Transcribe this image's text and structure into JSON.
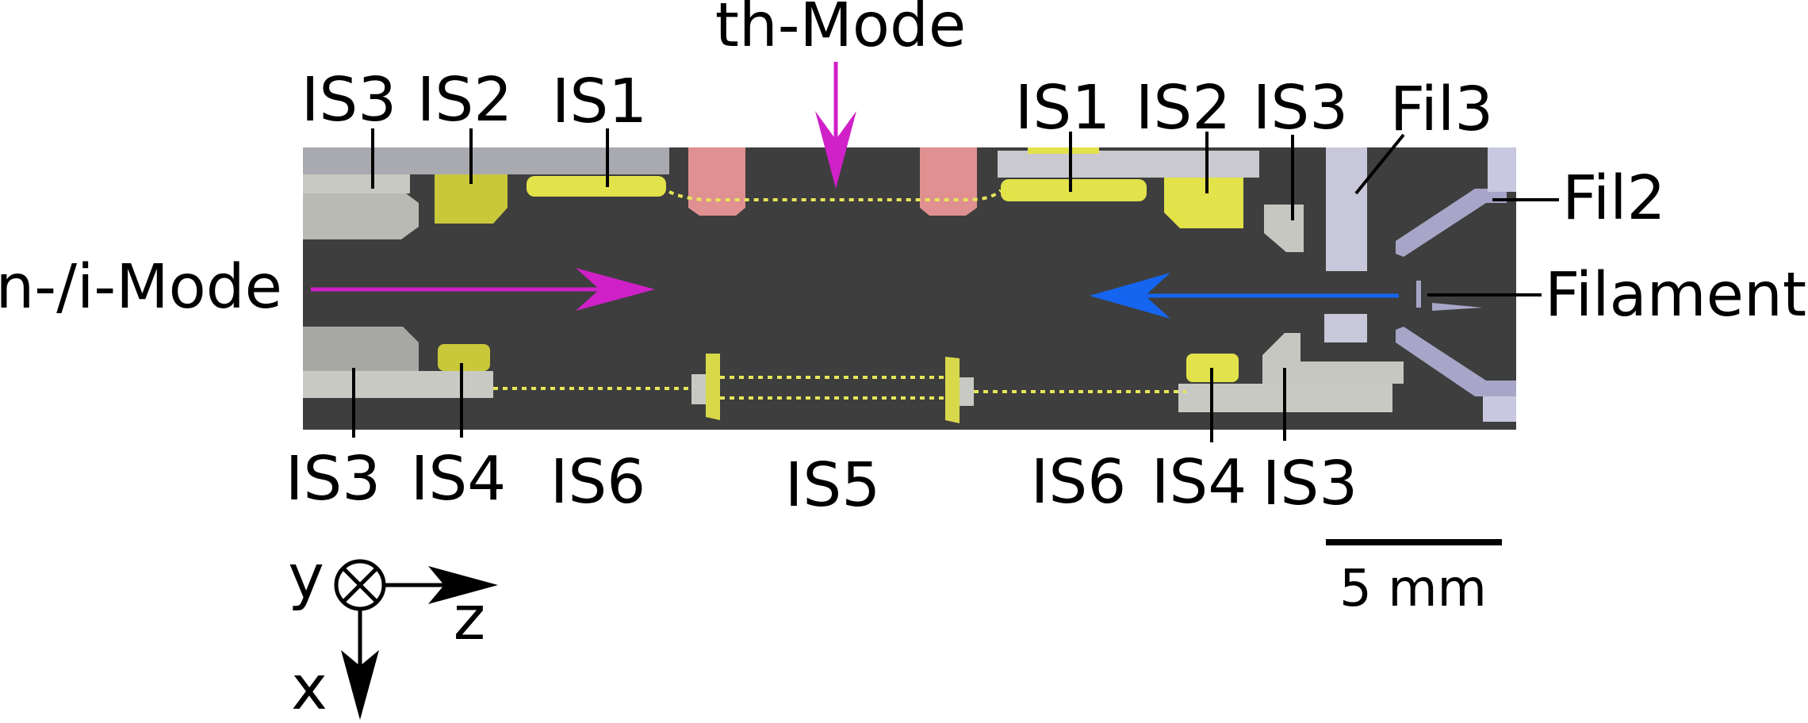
{
  "modes": {
    "top": "th-Mode",
    "left": "n-/i-Mode"
  },
  "labels": {
    "top": [
      "IS3",
      "IS2",
      "IS1",
      "IS1",
      "IS2",
      "IS3",
      "Fil3"
    ],
    "bottom": [
      "IS3",
      "IS4",
      "IS6",
      "IS5",
      "IS6",
      "IS4",
      "IS3"
    ],
    "right": [
      "Fil2",
      "Filament"
    ]
  },
  "scale_bar": {
    "label": "5 mm"
  },
  "axes": {
    "y": "y",
    "z": "z",
    "x": "x"
  },
  "colors": {
    "background_panel": "#3e3e3e",
    "electrode_gray": "#c8c9c2",
    "electrode_yellow": "#e0e04a",
    "shield_pink": "#e09090",
    "filament_lilac": "#c2c2de",
    "mode_magenta": "#d020c8",
    "beam_blue": "#1565f0",
    "dotted_path": "#e6e65a"
  }
}
